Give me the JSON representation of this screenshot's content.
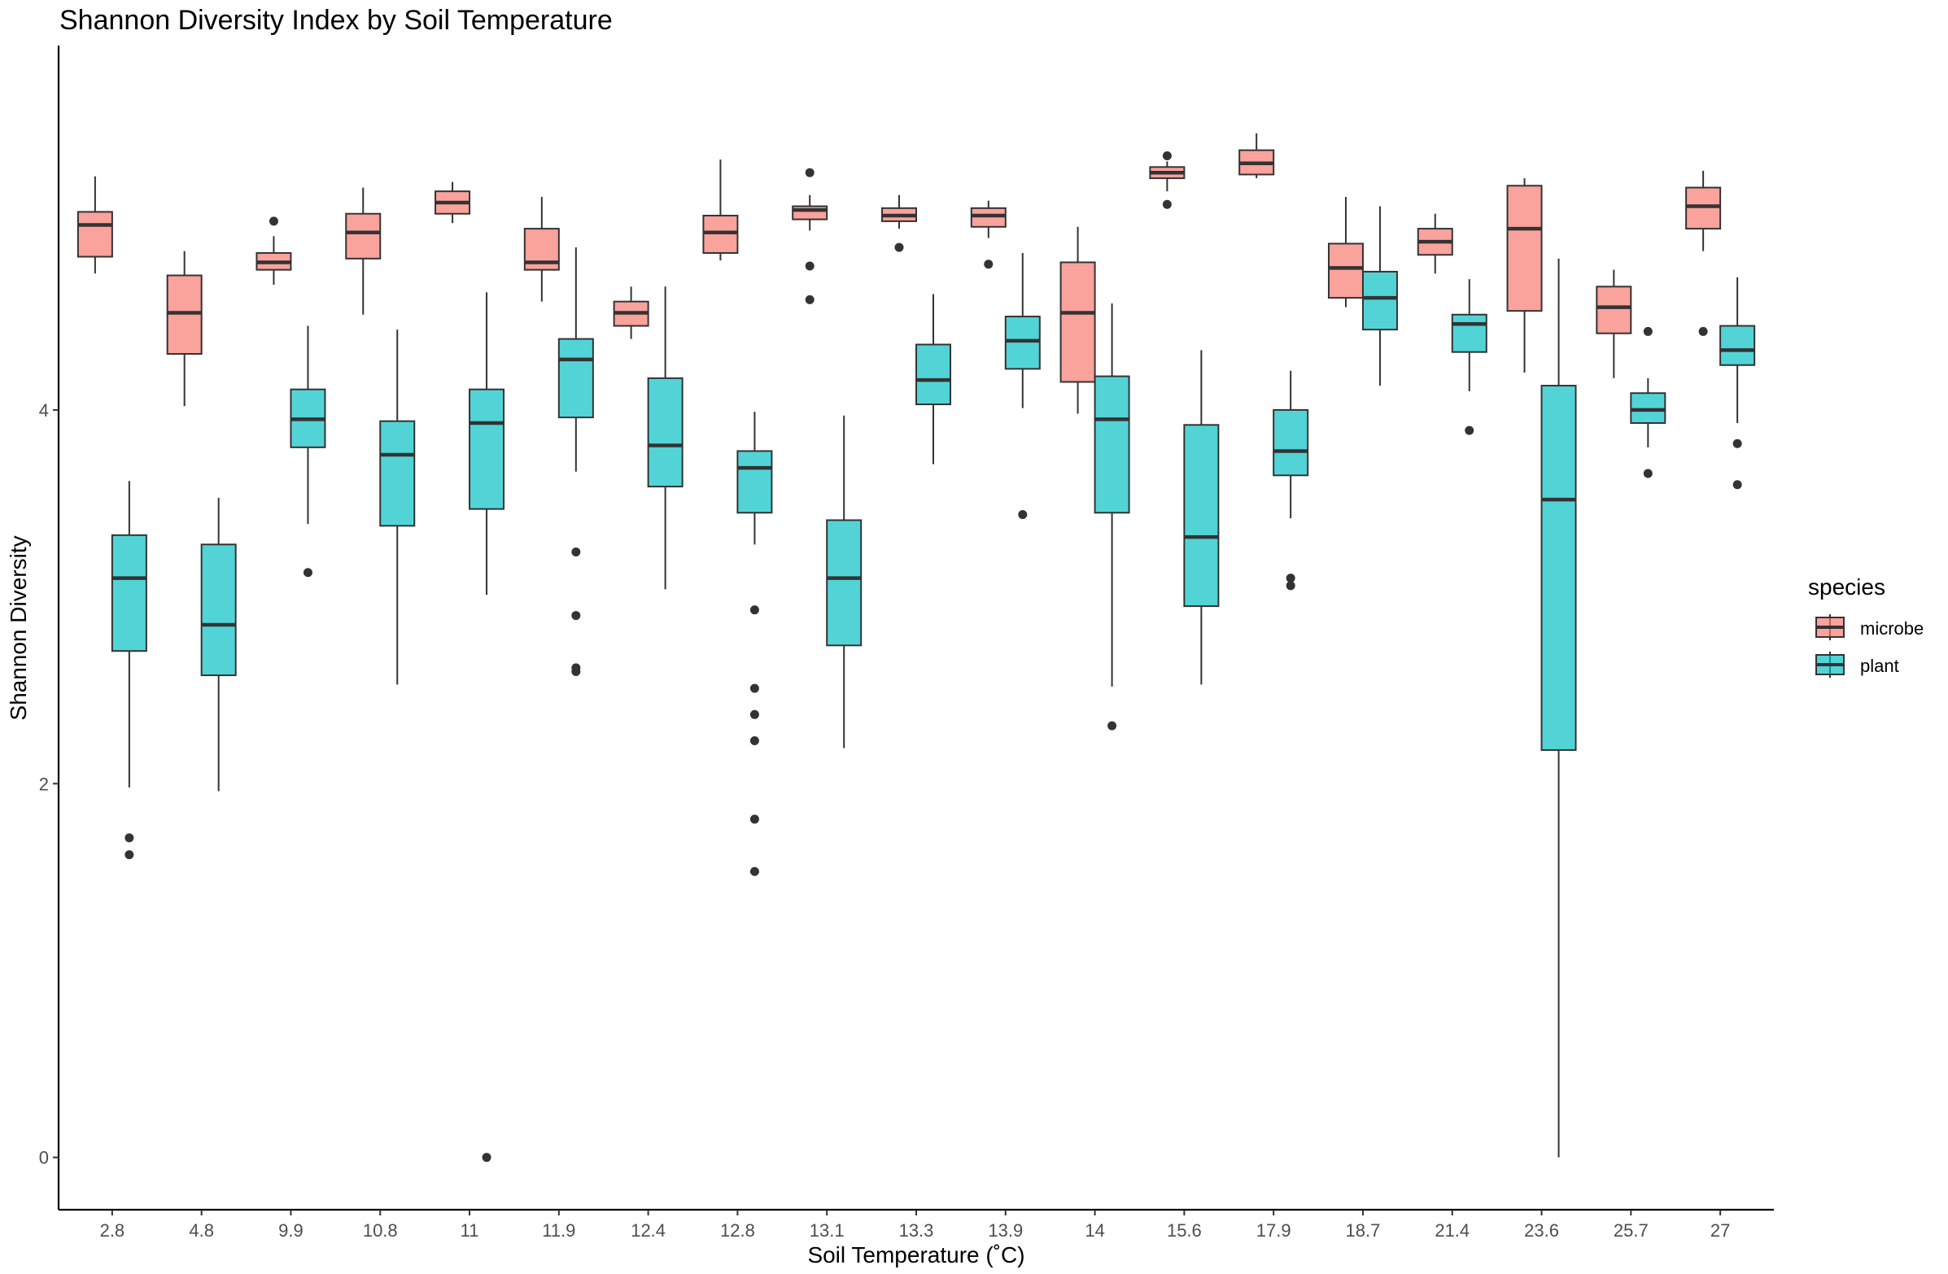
{
  "chart_data": {
    "type": "boxplot",
    "title": "Shannon Diversity Index by Soil Temperature",
    "xlabel": "Soil Temperature (˚C)",
    "ylabel": "Shannon Diversity",
    "ylim": [
      -0.28,
      5.95
    ],
    "yticks": [
      0,
      2,
      4
    ],
    "grid": false,
    "legend": {
      "title": "species",
      "placement": "right"
    },
    "categories": [
      "2.8",
      "4.8",
      "9.9",
      "10.8",
      "11",
      "11.9",
      "12.4",
      "12.8",
      "13.1",
      "13.3",
      "13.9",
      "14",
      "15.6",
      "17.9",
      "18.7",
      "21.4",
      "23.6",
      "25.7",
      "27"
    ],
    "series": [
      {
        "name": "microbe",
        "color": "#F8766D",
        "boxes": [
          {
            "whislo": 4.73,
            "q1": 4.82,
            "med": 4.99,
            "q3": 5.06,
            "whishi": 5.25,
            "fliers": []
          },
          {
            "whislo": 4.02,
            "q1": 4.3,
            "med": 4.52,
            "q3": 4.72,
            "whishi": 4.85,
            "fliers": []
          },
          {
            "whislo": 4.67,
            "q1": 4.75,
            "med": 4.79,
            "q3": 4.84,
            "whishi": 4.93,
            "fliers": [
              5.01
            ]
          },
          {
            "whislo": 4.51,
            "q1": 4.81,
            "med": 4.95,
            "q3": 5.05,
            "whishi": 5.19,
            "fliers": []
          },
          {
            "whislo": 5.0,
            "q1": 5.05,
            "med": 5.11,
            "q3": 5.17,
            "whishi": 5.22,
            "fliers": []
          },
          {
            "whislo": 4.58,
            "q1": 4.75,
            "med": 4.79,
            "q3": 4.97,
            "whishi": 5.14,
            "fliers": []
          },
          {
            "whislo": 4.38,
            "q1": 4.45,
            "med": 4.52,
            "q3": 4.58,
            "whishi": 4.66,
            "fliers": []
          },
          {
            "whislo": 4.8,
            "q1": 4.84,
            "med": 4.95,
            "q3": 5.04,
            "whishi": 5.34,
            "fliers": []
          },
          {
            "whislo": 4.96,
            "q1": 5.02,
            "med": 5.07,
            "q3": 5.09,
            "whishi": 5.15,
            "fliers": [
              5.27,
              4.77,
              4.59
            ]
          },
          {
            "whislo": 4.97,
            "q1": 5.01,
            "med": 5.04,
            "q3": 5.08,
            "whishi": 5.15,
            "fliers": [
              4.87
            ]
          },
          {
            "whislo": 4.92,
            "q1": 4.98,
            "med": 5.04,
            "q3": 5.08,
            "whishi": 5.12,
            "fliers": [
              4.78
            ]
          },
          {
            "whislo": 3.98,
            "q1": 4.15,
            "med": 4.52,
            "q3": 4.79,
            "whishi": 4.98,
            "fliers": []
          },
          {
            "whislo": 5.17,
            "q1": 5.24,
            "med": 5.27,
            "q3": 5.3,
            "whishi": 5.33,
            "fliers": [
              5.36,
              5.1
            ]
          },
          {
            "whislo": 5.24,
            "q1": 5.26,
            "med": 5.32,
            "q3": 5.39,
            "whishi": 5.48,
            "fliers": []
          },
          {
            "whislo": 4.55,
            "q1": 4.6,
            "med": 4.76,
            "q3": 4.89,
            "whishi": 5.14,
            "fliers": []
          },
          {
            "whislo": 4.73,
            "q1": 4.83,
            "med": 4.9,
            "q3": 4.97,
            "whishi": 5.05,
            "fliers": []
          },
          {
            "whislo": 4.2,
            "q1": 4.53,
            "med": 4.97,
            "q3": 5.2,
            "whishi": 5.24,
            "fliers": []
          },
          {
            "whislo": 4.17,
            "q1": 4.41,
            "med": 4.55,
            "q3": 4.66,
            "whishi": 4.75,
            "fliers": []
          },
          {
            "whislo": 4.85,
            "q1": 4.97,
            "med": 5.09,
            "q3": 5.19,
            "whishi": 5.28,
            "fliers": [
              4.42
            ]
          }
        ]
      },
      {
        "name": "plant",
        "color": "#00BFC4",
        "boxes": [
          {
            "whislo": 1.98,
            "q1": 2.71,
            "med": 3.1,
            "q3": 3.33,
            "whishi": 3.62,
            "fliers": [
              1.71,
              1.62
            ]
          },
          {
            "whislo": 1.96,
            "q1": 2.58,
            "med": 2.85,
            "q3": 3.28,
            "whishi": 3.53,
            "fliers": []
          },
          {
            "whislo": 3.39,
            "q1": 3.8,
            "med": 3.95,
            "q3": 4.11,
            "whishi": 4.45,
            "fliers": [
              3.13
            ]
          },
          {
            "whislo": 2.53,
            "q1": 3.38,
            "med": 3.76,
            "q3": 3.94,
            "whishi": 4.43,
            "fliers": []
          },
          {
            "whislo": 3.01,
            "q1": 3.47,
            "med": 3.93,
            "q3": 4.11,
            "whishi": 4.63,
            "fliers": [
              0.0
            ]
          },
          {
            "whislo": 3.67,
            "q1": 3.96,
            "med": 4.27,
            "q3": 4.38,
            "whishi": 4.87,
            "fliers": [
              3.24,
              2.9,
              2.62,
              2.6
            ]
          },
          {
            "whislo": 3.04,
            "q1": 3.59,
            "med": 3.81,
            "q3": 4.17,
            "whishi": 4.66,
            "fliers": []
          },
          {
            "whislo": 3.28,
            "q1": 3.45,
            "med": 3.69,
            "q3": 3.78,
            "whishi": 3.99,
            "fliers": [
              2.93,
              2.51,
              2.37,
              2.23,
              1.81,
              1.53
            ]
          },
          {
            "whislo": 2.19,
            "q1": 2.74,
            "med": 3.1,
            "q3": 3.41,
            "whishi": 3.97,
            "fliers": []
          },
          {
            "whislo": 3.71,
            "q1": 4.03,
            "med": 4.16,
            "q3": 4.35,
            "whishi": 4.62,
            "fliers": []
          },
          {
            "whislo": 4.01,
            "q1": 4.22,
            "med": 4.37,
            "q3": 4.5,
            "whishi": 4.84,
            "fliers": [
              3.44
            ]
          },
          {
            "whislo": 2.52,
            "q1": 3.45,
            "med": 3.95,
            "q3": 4.18,
            "whishi": 4.57,
            "fliers": [
              2.31
            ]
          },
          {
            "whislo": 2.53,
            "q1": 2.95,
            "med": 3.32,
            "q3": 3.92,
            "whishi": 4.32,
            "fliers": []
          },
          {
            "whislo": 3.42,
            "q1": 3.65,
            "med": 3.78,
            "q3": 4.0,
            "whishi": 4.21,
            "fliers": [
              3.1,
              3.06
            ]
          },
          {
            "whislo": 4.13,
            "q1": 4.43,
            "med": 4.6,
            "q3": 4.74,
            "whishi": 5.09,
            "fliers": []
          },
          {
            "whislo": 4.1,
            "q1": 4.31,
            "med": 4.46,
            "q3": 4.51,
            "whishi": 4.7,
            "fliers": [
              3.89
            ]
          },
          {
            "whislo": 0.0,
            "q1": 2.18,
            "med": 3.52,
            "q3": 4.13,
            "whishi": 4.81,
            "fliers": []
          },
          {
            "whislo": 3.8,
            "q1": 3.93,
            "med": 4.0,
            "q3": 4.09,
            "whishi": 4.17,
            "fliers": [
              4.42,
              3.66
            ]
          },
          {
            "whislo": 3.93,
            "q1": 4.24,
            "med": 4.32,
            "q3": 4.45,
            "whishi": 4.71,
            "fliers": [
              3.82,
              3.6
            ]
          }
        ]
      }
    ]
  }
}
